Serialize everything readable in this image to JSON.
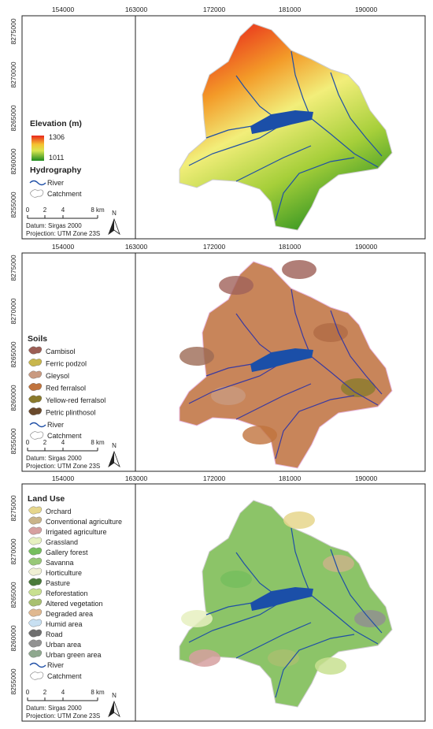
{
  "panels": [
    {
      "x_ticks": [
        154000,
        163000,
        172000,
        181000,
        190000
      ],
      "y_ticks": [
        8275000,
        8270000,
        8265000,
        8260000,
        8255000
      ],
      "legend": {
        "title": "Elevation (m)",
        "gradient_max": 1306,
        "gradient_min": 1011,
        "section": "Hydrography",
        "items": []
      },
      "river": "River",
      "catchment": "Catchment",
      "scale_labels": [
        "0",
        "2",
        "4",
        "8 km"
      ],
      "north": "N",
      "datum": "Datum: Sirgas 2000",
      "projection": "Projection: UTM Zone 23S"
    },
    {
      "x_ticks": [
        154000,
        163000,
        172000,
        181000,
        190000
      ],
      "y_ticks": [
        8275000,
        8270000,
        8265000,
        8260000,
        8255000
      ],
      "legend": {
        "title": "Soils",
        "items": [
          {
            "label": "Cambisol",
            "color": "#9c5e55"
          },
          {
            "label": "Ferric podzol",
            "color": "#c8b64c"
          },
          {
            "label": "Gleysol",
            "color": "#c99a80"
          },
          {
            "label": "Red ferralsol",
            "color": "#c0733d"
          },
          {
            "label": "Yellow-red ferralsol",
            "color": "#8a7a2c"
          },
          {
            "label": "Petric plinthosol",
            "color": "#6b4a2c"
          }
        ]
      },
      "river": "River",
      "catchment": "Catchment",
      "scale_labels": [
        "0",
        "2",
        "4",
        "8 km"
      ],
      "north": "N",
      "datum": "Datum: Sirgas 2000",
      "projection": "Projection: UTM Zone 23S"
    },
    {
      "x_ticks": [
        154000,
        163000,
        172000,
        181000,
        190000
      ],
      "y_ticks": [
        8275000,
        8270000,
        8265000,
        8260000,
        8255000
      ],
      "legend": {
        "title": "Land Use",
        "items": [
          {
            "label": "Orchard",
            "color": "#e6d68c"
          },
          {
            "label": "Conventional agriculture",
            "color": "#c9b48a"
          },
          {
            "label": "Irrigated agriculture",
            "color": "#d6a0a0"
          },
          {
            "label": "Grassland",
            "color": "#e6f0c0"
          },
          {
            "label": "Gallery forest",
            "color": "#76be5e"
          },
          {
            "label": "Savanna",
            "color": "#98c878"
          },
          {
            "label": "Horticulture",
            "color": "#f0f0d4"
          },
          {
            "label": "Pasture",
            "color": "#4a7a3a"
          },
          {
            "label": "Reforestation",
            "color": "#c8e090"
          },
          {
            "label": "Altered vegetation",
            "color": "#a8c070"
          },
          {
            "label": "Degraded area",
            "color": "#e0b890"
          },
          {
            "label": "Humid area",
            "color": "#c8e0f2"
          },
          {
            "label": "Road",
            "color": "#6e6e6e"
          },
          {
            "label": "Urban area",
            "color": "#919191"
          },
          {
            "label": "Urban green area",
            "color": "#8fa88f"
          }
        ]
      },
      "river": "River",
      "catchment": "Catchment",
      "scale_labels": [
        "0",
        "2",
        "4",
        "8 km"
      ],
      "north": "N",
      "datum": "Datum: Sirgas 2000",
      "projection": "Projection: UTM Zone 23S"
    }
  ]
}
